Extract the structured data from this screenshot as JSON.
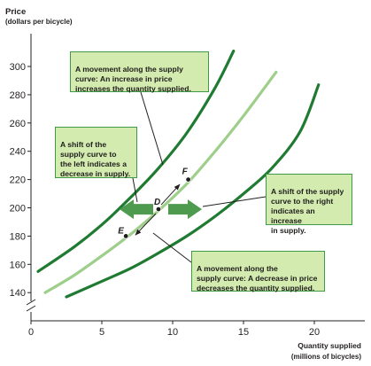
{
  "chart_data": {
    "type": "line",
    "ylabel_line1": "Price",
    "ylabel_line2": "(dollars per bicycle)",
    "xlabel_line1": "Quantity supplied",
    "xlabel_line2": "(millions of bicycles)",
    "x_ticks": [
      0,
      5,
      10,
      15,
      20
    ],
    "y_ticks": [
      140,
      160,
      180,
      200,
      220,
      240,
      260,
      280,
      300
    ],
    "xlim": [
      0,
      22.5
    ],
    "ylim": [
      130,
      308
    ],
    "series": [
      {
        "role": "shifted-left",
        "color": "#1f7a32",
        "x": [
          0.5,
          3,
          5,
          7,
          9,
          11,
          13,
          14.3
        ],
        "y": [
          155,
          172,
          188,
          207,
          228,
          253,
          285,
          311
        ]
      },
      {
        "role": "original",
        "color": "#9dce8a",
        "x": [
          1,
          3,
          5,
          7,
          9,
          11,
          13,
          15,
          17.3
        ],
        "y": [
          140,
          152,
          166,
          181,
          198,
          217,
          240,
          265,
          296
        ]
      },
      {
        "role": "shifted-right",
        "color": "#1f7a32",
        "x": [
          2.5,
          5,
          7,
          9,
          11,
          13,
          15,
          17,
          19,
          20.3
        ],
        "y": [
          137,
          148,
          157,
          168,
          180,
          194,
          210,
          228,
          254,
          287
        ]
      }
    ],
    "points": [
      {
        "label": "E",
        "x": 6.7,
        "y": 180
      },
      {
        "label": "D",
        "x": 9.0,
        "y": 199
      },
      {
        "label": "F",
        "x": 11.1,
        "y": 220
      }
    ],
    "annotations": [
      {
        "id": "movement-up",
        "text": "A movement along the supply\ncurve: An increase in price\nincreases the quantity supplied."
      },
      {
        "id": "shift-left",
        "text": "A shift of the\nsupply curve to\nthe left indicates a\ndecrease in supply."
      },
      {
        "id": "shift-right",
        "text": "A shift of the supply\ncurve to the right\nindicates an increase\nin supply."
      },
      {
        "id": "movement-down",
        "text": "A movement along the\nsupply curve: A decrease in price\ndecreases the quantity supplied."
      }
    ]
  }
}
